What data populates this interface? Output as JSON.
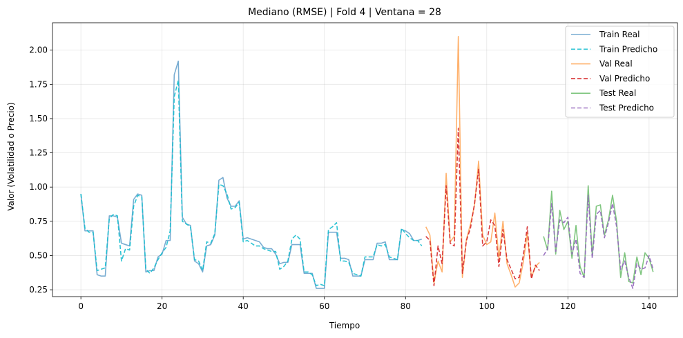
{
  "chart_data": {
    "type": "line",
    "title": "Mediano (RMSE) | Fold 4 | Ventana = 28",
    "xlabel": "Tiempo",
    "ylabel": "Valor (Volatilidad o Precio)",
    "xlim": [
      -7,
      147
    ],
    "ylim": [
      0.2,
      2.2
    ],
    "xticks": [
      0,
      20,
      40,
      60,
      80,
      100,
      120,
      140
    ],
    "yticks": [
      0.25,
      0.5,
      0.75,
      1.0,
      1.25,
      1.5,
      1.75,
      2.0
    ],
    "ytick_labels": [
      "0.25",
      "0.50",
      "0.75",
      "1.00",
      "1.25",
      "1.50",
      "1.75",
      "2.00"
    ],
    "grid": true,
    "legend_position": "top-right",
    "series": [
      {
        "name": "Train Real",
        "color": "#1f77b4",
        "dash": "solid",
        "alpha": 0.6,
        "x_start": 0,
        "values": [
          0.95,
          0.68,
          0.68,
          0.68,
          0.36,
          0.35,
          0.35,
          0.79,
          0.79,
          0.78,
          0.59,
          0.58,
          0.57,
          0.91,
          0.95,
          0.94,
          0.38,
          0.39,
          0.39,
          0.49,
          0.51,
          0.61,
          0.61,
          1.82,
          1.92,
          0.78,
          0.73,
          0.72,
          0.46,
          0.44,
          0.38,
          0.57,
          0.58,
          0.65,
          1.05,
          1.07,
          0.92,
          0.86,
          0.86,
          0.9,
          0.62,
          0.63,
          0.62,
          0.61,
          0.6,
          0.56,
          0.55,
          0.55,
          0.51,
          0.44,
          0.45,
          0.45,
          0.58,
          0.58,
          0.58,
          0.37,
          0.37,
          0.37,
          0.26,
          0.26,
          0.26,
          0.67,
          0.67,
          0.67,
          0.48,
          0.48,
          0.47,
          0.35,
          0.35,
          0.35,
          0.47,
          0.47,
          0.47,
          0.59,
          0.59,
          0.6,
          0.47,
          0.47,
          0.47,
          0.69,
          0.68,
          0.66,
          0.61,
          0.61,
          0.62
        ]
      },
      {
        "name": "Train Predicho",
        "color": "#17becf",
        "dash": "dashed",
        "alpha": 0.9,
        "x_start": 0,
        "values": [
          0.95,
          0.7,
          0.67,
          0.67,
          0.39,
          0.4,
          0.41,
          0.77,
          0.8,
          0.79,
          0.46,
          0.55,
          0.54,
          0.86,
          0.94,
          0.93,
          0.4,
          0.37,
          0.41,
          0.47,
          0.52,
          0.56,
          0.68,
          1.66,
          1.78,
          0.75,
          0.73,
          0.71,
          0.47,
          0.46,
          0.39,
          0.6,
          0.59,
          0.66,
          1.02,
          1.01,
          0.95,
          0.84,
          0.85,
          0.89,
          0.6,
          0.61,
          0.59,
          0.57,
          0.57,
          0.55,
          0.54,
          0.53,
          0.53,
          0.4,
          0.42,
          0.46,
          0.62,
          0.65,
          0.62,
          0.38,
          0.38,
          0.36,
          0.28,
          0.29,
          0.28,
          0.69,
          0.71,
          0.74,
          0.46,
          0.46,
          0.45,
          0.37,
          0.36,
          0.35,
          0.49,
          0.49,
          0.49,
          0.58,
          0.57,
          0.58,
          0.49,
          0.48,
          0.47,
          0.7,
          0.66,
          0.63,
          0.61,
          0.61,
          0.57
        ]
      },
      {
        "name": "Val Real",
        "color": "#ff7f0e",
        "dash": "solid",
        "alpha": 0.6,
        "x_start": 85,
        "values": [
          0.71,
          0.65,
          0.3,
          0.46,
          0.38,
          1.1,
          0.6,
          0.64,
          2.1,
          0.34,
          0.62,
          0.73,
          0.87,
          1.19,
          0.65,
          0.58,
          0.6,
          0.81,
          0.48,
          0.75,
          0.44,
          0.36,
          0.27,
          0.3,
          0.45,
          0.66,
          0.34,
          0.42,
          0.45
        ]
      },
      {
        "name": "Val Predicho",
        "color": "#d62728",
        "dash": "dashed",
        "alpha": 0.9,
        "x_start": 85,
        "values": [
          0.64,
          0.61,
          0.28,
          0.57,
          0.44,
          1.01,
          0.59,
          0.57,
          1.43,
          0.37,
          0.61,
          0.7,
          0.88,
          1.13,
          0.57,
          0.6,
          0.76,
          0.72,
          0.42,
          0.69,
          0.47,
          0.4,
          0.33,
          0.34,
          0.5,
          0.71,
          0.33,
          0.43,
          0.39
        ]
      },
      {
        "name": "Test Real",
        "color": "#2ca02c",
        "dash": "solid",
        "alpha": 0.6,
        "x_start": 114,
        "values": [
          0.64,
          0.54,
          0.97,
          0.51,
          0.83,
          0.69,
          0.75,
          0.48,
          0.72,
          0.42,
          0.34,
          1.01,
          0.5,
          0.86,
          0.87,
          0.65,
          0.76,
          0.94,
          0.75,
          0.34,
          0.52,
          0.31,
          0.3,
          0.49,
          0.36,
          0.52,
          0.48,
          0.38
        ]
      },
      {
        "name": "Test Predicho",
        "color": "#9467bd",
        "dash": "dashed",
        "alpha": 0.9,
        "x_start": 114,
        "values": [
          0.5,
          0.55,
          0.88,
          0.53,
          0.76,
          0.74,
          0.78,
          0.51,
          0.62,
          0.37,
          0.34,
          0.94,
          0.48,
          0.8,
          0.83,
          0.63,
          0.74,
          0.88,
          0.71,
          0.4,
          0.46,
          0.34,
          0.26,
          0.44,
          0.4,
          0.41,
          0.5,
          0.4
        ]
      }
    ]
  }
}
